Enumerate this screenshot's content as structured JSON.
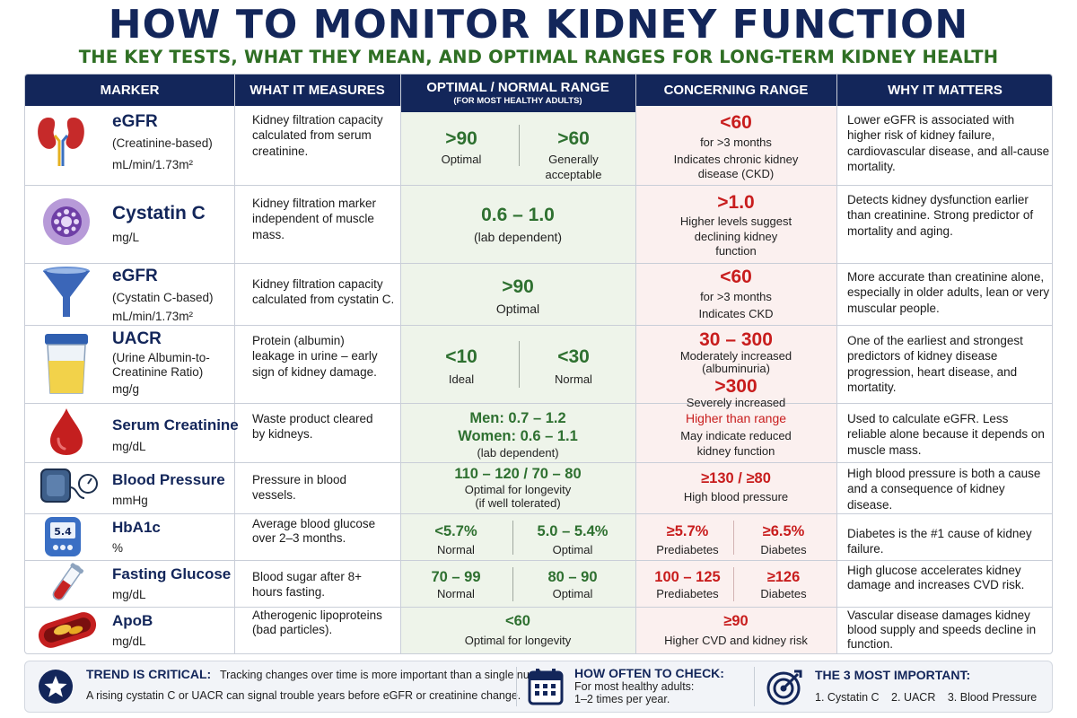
{
  "title": "HOW TO MONITOR KIDNEY FUNCTION",
  "subtitle": "THE KEY TESTS, WHAT THEY MEAN, AND OPTIMAL RANGES FOR LONG-TERM KIDNEY HEALTH",
  "colors": {
    "navy": "#13265a",
    "green": "#2e7030",
    "red": "#c81d1d",
    "optimal_bg": "#eef4ea",
    "concern_bg": "#fbf0ef"
  },
  "headers": {
    "marker": "MARKER",
    "measures": "WHAT IT MEASURES",
    "optimal": "OPTIMAL / NORMAL RANGE",
    "optimal_sub": "(FOR MOST HEALTHY ADULTS)",
    "concerning": "CONCERNING RANGE",
    "why": "WHY IT MATTERS"
  },
  "rows": [
    {
      "icon": "kidneys-icon",
      "name": "eGFR",
      "sub": "(Creatinine-based)",
      "unit": "mL/min/1.73m²",
      "measures": "Kidney filtration capacity calculated from serum creatinine.",
      "optimal": {
        "a_value": ">90",
        "a_label": "Optimal",
        "b_value": ">60",
        "b_label": "Generally acceptable"
      },
      "concerning": {
        "value": "<60",
        "line1": "for >3 months",
        "line2": "Indicates chronic kidney disease (CKD)"
      },
      "why": "Lower eGFR is associated with higher risk of kidney failure, cardiovascular disease, and all-cause mortality."
    },
    {
      "icon": "cell-icon",
      "name": "Cystatin C",
      "sub": "",
      "unit": "mg/L",
      "measures": "Kidney filtration marker independent of muscle mass.",
      "optimal": {
        "value": "0.6 – 1.0",
        "label": "(lab dependent)"
      },
      "concerning": {
        "value": ">1.0",
        "line1": "Higher levels suggest declining kidney function"
      },
      "why": "Detects kidney dysfunction earlier than creatinine. Strong predictor of mortality and aging."
    },
    {
      "icon": "funnel-icon",
      "name": "eGFR",
      "sub": "(Cystatin C-based)",
      "unit": "mL/min/1.73m²",
      "measures": "Kidney filtration capacity calculated from cystatin C.",
      "optimal": {
        "value": ">90",
        "label": "Optimal"
      },
      "concerning": {
        "value": "<60",
        "line1": "for >3 months",
        "line2": "Indicates CKD"
      },
      "why": "More accurate than creatinine alone, especially in older adults, lean or very muscular people."
    },
    {
      "icon": "urine-cup-icon",
      "name": "UACR",
      "sub": "(Urine Albumin-to-Creatinine Ratio)",
      "unit": "mg/g",
      "measures": "Protein (albumin) leakage in urine – early sign of kidney damage.",
      "optimal": {
        "a_value": "<10",
        "a_label": "Ideal",
        "b_value": "<30",
        "b_label": "Normal"
      },
      "concerning": {
        "value1": "30 – 300",
        "label1": "Moderately increased (albuminuria)",
        "value2": ">300",
        "label2": "Severely increased"
      },
      "why": "One of the earliest and strongest predictors of kidney disease progression, heart disease, and mortatity."
    },
    {
      "icon": "blood-drop-icon",
      "name": "Serum Creatinine",
      "sub": "",
      "unit": "mg/dL",
      "measures": "Waste product cleared by kidneys.",
      "optimal": {
        "line1": "Men:  0.7 – 1.2",
        "line2": "Women:  0.6 – 1.1",
        "label": "(lab dependent)"
      },
      "concerning": {
        "value": "Higher than range",
        "line1": "May indicate reduced kidney function"
      },
      "why": "Used to calculate eGFR. Less reliable alone because it depends on muscle mass."
    },
    {
      "icon": "blood-pressure-cuff-icon",
      "name": "Blood Pressure",
      "sub": "",
      "unit": "mmHg",
      "measures": "Pressure in blood vessels.",
      "optimal": {
        "value": "110 – 120 / 70 – 80",
        "label1": "Optimal for longevity",
        "label2": "(if well tolerated)"
      },
      "concerning": {
        "value": "≥130 / ≥80",
        "line1": "High blood pressure"
      },
      "why": "High blood pressure is both a cause and a consequence of kidney disease."
    },
    {
      "icon": "glucose-meter-icon",
      "meter_reading": "5.4",
      "name": "HbA1c",
      "sub": "",
      "unit": "%",
      "measures": "Average blood glucose over 2–3 months.",
      "optimal": {
        "a_value": "<5.7%",
        "a_label": "Normal",
        "b_value": "5.0 – 5.4%",
        "b_label": "Optimal"
      },
      "concerning": {
        "a_value": "≥5.7%",
        "a_label": "Prediabetes",
        "b_value": "≥6.5%",
        "b_label": "Diabetes"
      },
      "why": "Diabetes is the #1 cause of kidney failure."
    },
    {
      "icon": "test-tube-icon",
      "name": "Fasting Glucose",
      "sub": "",
      "unit": "mg/dL",
      "measures": "Blood sugar after 8+ hours fasting.",
      "optimal": {
        "a_value": "70 – 99",
        "a_label": "Normal",
        "b_value": "80 – 90",
        "b_label": "Optimal"
      },
      "concerning": {
        "a_value": "100 – 125",
        "a_label": "Prediabetes",
        "b_value": "≥126",
        "b_label": "Diabetes"
      },
      "why": "High glucose accelerates kidney damage and increases CVD risk."
    },
    {
      "icon": "artery-plaque-icon",
      "name": "ApoB",
      "sub": "",
      "unit": "mg/dL",
      "measures": "Atherogenic lipoproteins (bad particles).",
      "optimal": {
        "value": "<60",
        "label": "Optimal for longevity"
      },
      "concerning": {
        "value": "≥90",
        "line1": "Higher CVD and kidney risk"
      },
      "why": "Vascular disease damages kidney blood supply and speeds decline in function."
    }
  ],
  "footer": {
    "trend_title": "TREND IS CRITICAL:",
    "trend_text": "Tracking changes over time is more important than a single number.",
    "trend_text2": "A rising cystatin C or UACR can signal trouble years before eGFR or creatinine change.",
    "often_title": "HOW OFTEN TO CHECK:",
    "often_text1": "For most healthy adults:",
    "often_text2": "1–2 times per year.",
    "top_title": "THE 3 MOST IMPORTANT:",
    "top_items": [
      "1. Cystatin C",
      "2. UACR",
      "3. Blood Pressure"
    ]
  }
}
